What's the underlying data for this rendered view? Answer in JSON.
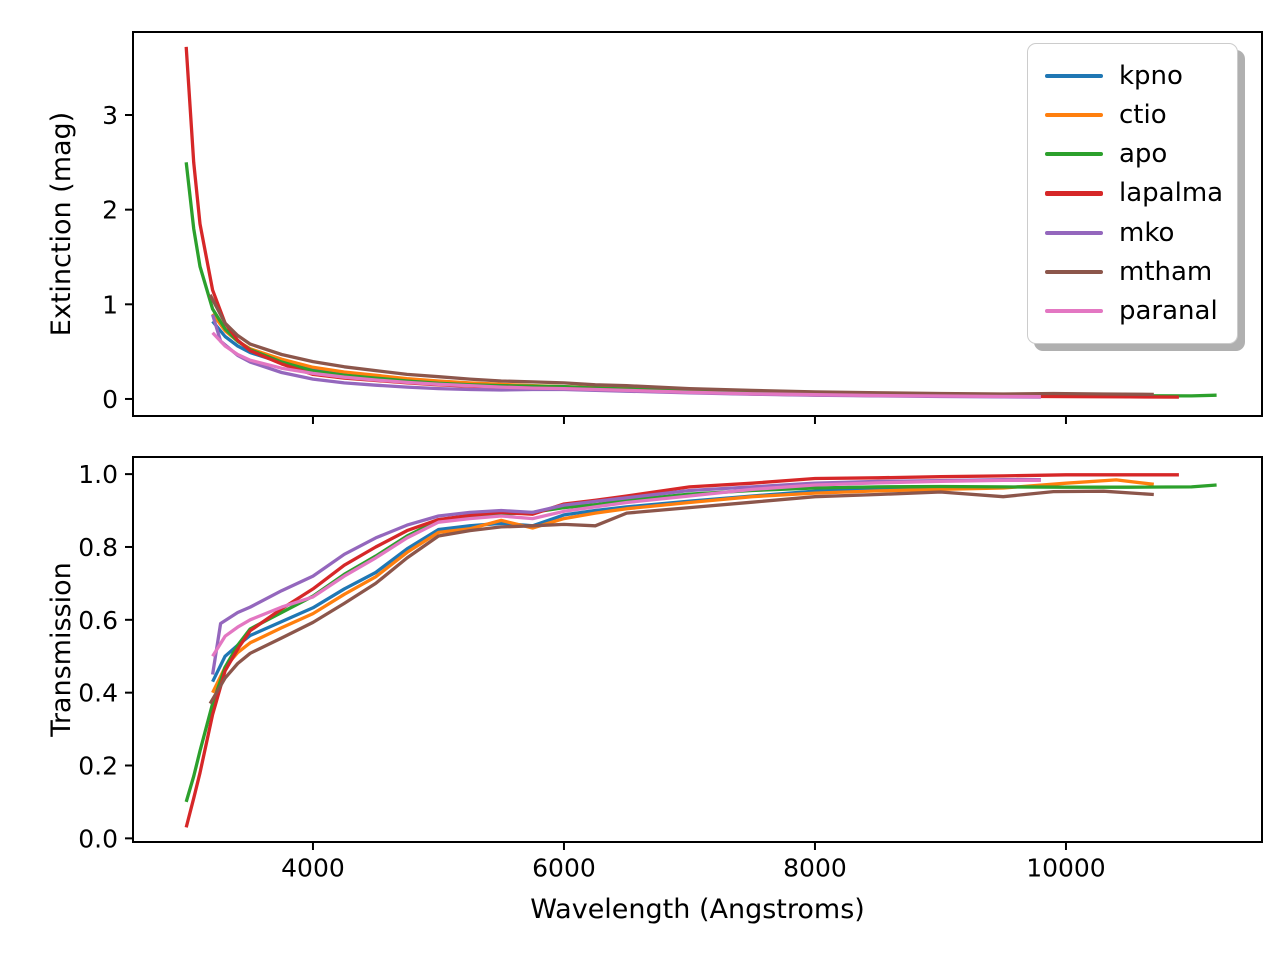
{
  "chart_data": [
    {
      "type": "line",
      "panel": "top",
      "title": "",
      "xlabel": "",
      "ylabel": "Extinction (mag)",
      "xlim": [
        2566,
        11562
      ],
      "ylim": [
        -0.18,
        3.877
      ],
      "grid": false,
      "legend_position": "upper right",
      "xticks": {
        "values": [
          4000,
          6000,
          8000,
          10000
        ],
        "labels": [
          "4000",
          "6000",
          "8000",
          "10000"
        ],
        "show_labels": false
      },
      "yticks": {
        "values": [
          0,
          1,
          2,
          3
        ],
        "labels": [
          "0",
          "1",
          "2",
          "3"
        ]
      },
      "series": [
        {
          "name": "kpno",
          "color": "#1f77b4",
          "x": [
            3200,
            3300,
            3400,
            3500,
            3750,
            4000,
            4250,
            4500,
            4750,
            5000,
            5250,
            5500,
            5750,
            6000,
            6250,
            6500,
            7000,
            7500,
            8000,
            8500,
            9000
          ],
          "y": [
            0.82,
            0.66,
            0.56,
            0.49,
            0.385,
            0.31,
            0.265,
            0.23,
            0.2,
            0.175,
            0.155,
            0.14,
            0.13,
            0.125,
            0.11,
            0.1,
            0.08,
            0.063,
            0.05,
            0.042,
            0.035
          ]
        },
        {
          "name": "ctio",
          "color": "#ff7f0e",
          "x": [
            3200,
            3300,
            3400,
            3500,
            3750,
            4000,
            4250,
            4500,
            4750,
            5000,
            5250,
            5500,
            5750,
            6000,
            6250,
            6500,
            7000,
            7500,
            8000,
            8500,
            9000,
            9500,
            10000,
            10400,
            10700
          ],
          "y": [
            0.9,
            0.72,
            0.61,
            0.53,
            0.42,
            0.335,
            0.285,
            0.25,
            0.215,
            0.19,
            0.17,
            0.155,
            0.14,
            0.13,
            0.12,
            0.11,
            0.088,
            0.068,
            0.055,
            0.046,
            0.04,
            0.035,
            0.03,
            0.028,
            0.028
          ]
        },
        {
          "name": "apo",
          "color": "#2ca02c",
          "x": [
            2990,
            3050,
            3100,
            3200,
            3300,
            3400,
            3500,
            3750,
            4000,
            4250,
            4500,
            4750,
            5000,
            5250,
            5500,
            5750,
            6000,
            6250,
            6500,
            7000,
            7500,
            8000,
            8500,
            9000,
            9500,
            10000,
            10500,
            11000,
            11200
          ],
          "y": [
            2.5,
            1.8,
            1.4,
            0.95,
            0.74,
            0.61,
            0.52,
            0.39,
            0.295,
            0.25,
            0.22,
            0.19,
            0.165,
            0.15,
            0.14,
            0.135,
            0.13,
            0.115,
            0.105,
            0.085,
            0.065,
            0.052,
            0.045,
            0.04,
            0.037,
            0.035,
            0.033,
            0.032,
            0.04
          ]
        },
        {
          "name": "lapalma",
          "color": "#d62728",
          "x": [
            2990,
            3050,
            3100,
            3200,
            3300,
            3400,
            3500,
            3750,
            4000,
            4250,
            4500,
            4750,
            5000,
            5250,
            5500,
            5750,
            6000,
            6250,
            6500,
            7000,
            7500,
            8000,
            8500,
            9000,
            9500,
            10000,
            10500,
            10900
          ],
          "y": [
            3.72,
            2.5,
            1.85,
            1.15,
            0.8,
            0.62,
            0.51,
            0.37,
            0.26,
            0.22,
            0.195,
            0.17,
            0.15,
            0.135,
            0.125,
            0.115,
            0.11,
            0.1,
            0.09,
            0.07,
            0.052,
            0.042,
            0.036,
            0.032,
            0.028,
            0.025,
            0.022,
            0.02
          ]
        },
        {
          "name": "mko",
          "color": "#9467bd",
          "x": [
            3200,
            3264,
            3400,
            3500,
            3750,
            4000,
            4250,
            4500,
            4750,
            5000,
            5250,
            5500,
            5750,
            6000,
            6250,
            6500,
            7000,
            7500,
            8000,
            8500,
            9000,
            9500,
            9800
          ],
          "y": [
            0.89,
            0.61,
            0.46,
            0.39,
            0.28,
            0.21,
            0.17,
            0.145,
            0.125,
            0.11,
            0.1,
            0.095,
            0.1,
            0.1,
            0.09,
            0.082,
            0.065,
            0.05,
            0.04,
            0.032,
            0.026,
            0.022,
            0.02
          ]
        },
        {
          "name": "mtham",
          "color": "#8c564b",
          "x": [
            3180,
            3300,
            3400,
            3500,
            3750,
            4000,
            4250,
            4500,
            4750,
            5000,
            5250,
            5500,
            5750,
            6000,
            6250,
            6500,
            7000,
            7500,
            8000,
            8500,
            9000,
            9500,
            9900,
            10300,
            10700
          ],
          "y": [
            1.1,
            0.8,
            0.67,
            0.58,
            0.47,
            0.395,
            0.34,
            0.3,
            0.26,
            0.235,
            0.21,
            0.19,
            0.18,
            0.17,
            0.15,
            0.14,
            0.11,
            0.09,
            0.075,
            0.065,
            0.058,
            0.052,
            0.058,
            0.052,
            0.048
          ]
        },
        {
          "name": "paranal",
          "color": "#e377c2",
          "x": [
            3200,
            3300,
            3400,
            3500,
            3750,
            4000,
            4250,
            4500,
            4750,
            5000,
            5250,
            5500,
            5750,
            6000,
            6250,
            6500,
            7000,
            7500,
            8000,
            8500,
            9000,
            9500,
            9800
          ],
          "y": [
            0.7,
            0.56,
            0.47,
            0.41,
            0.325,
            0.27,
            0.23,
            0.2,
            0.175,
            0.155,
            0.14,
            0.125,
            0.115,
            0.11,
            0.1,
            0.09,
            0.07,
            0.055,
            0.045,
            0.037,
            0.031,
            0.026,
            0.024
          ]
        }
      ]
    },
    {
      "type": "line",
      "panel": "bottom",
      "title": "",
      "xlabel": "Wavelength (Angstroms)",
      "ylabel": "Transmission",
      "xlim": [
        2566,
        11562
      ],
      "ylim": [
        -0.01,
        1.047
      ],
      "grid": false,
      "xticks": {
        "values": [
          4000,
          6000,
          8000,
          10000
        ],
        "labels": [
          "4000",
          "6000",
          "8000",
          "10000"
        ],
        "show_labels": true
      },
      "yticks": {
        "values": [
          0,
          0.2,
          0.4,
          0.6,
          0.8,
          1.0
        ],
        "labels": [
          "0.0",
          "0.2",
          "0.4",
          "0.6",
          "0.8",
          "1.0"
        ]
      },
      "series": [
        {
          "name": "kpno",
          "color": "#1f77b4",
          "x": [
            3200,
            3300,
            3400,
            3500,
            3750,
            4000,
            4250,
            4500,
            4750,
            5000,
            5250,
            5500,
            5750,
            6000,
            6250,
            6500,
            7000,
            7500,
            8000,
            8500,
            9000
          ],
          "y": [
            0.43,
            0.5,
            0.53,
            0.557,
            0.595,
            0.633,
            0.685,
            0.73,
            0.795,
            0.848,
            0.858,
            0.865,
            0.858,
            0.888,
            0.9,
            0.91,
            0.926,
            0.94,
            0.953,
            0.96,
            0.964
          ]
        },
        {
          "name": "ctio",
          "color": "#ff7f0e",
          "x": [
            3200,
            3300,
            3400,
            3500,
            3750,
            4000,
            4250,
            4500,
            4750,
            5000,
            5250,
            5500,
            5750,
            6000,
            6250,
            6500,
            7000,
            7500,
            8000,
            8500,
            9000,
            9500,
            10000,
            10400,
            10700
          ],
          "y": [
            0.4,
            0.47,
            0.51,
            0.537,
            0.578,
            0.617,
            0.67,
            0.718,
            0.785,
            0.84,
            0.85,
            0.873,
            0.852,
            0.878,
            0.893,
            0.905,
            0.922,
            0.938,
            0.948,
            0.954,
            0.958,
            0.962,
            0.975,
            0.984,
            0.972
          ]
        },
        {
          "name": "apo",
          "color": "#2ca02c",
          "x": [
            2990,
            3050,
            3100,
            3200,
            3300,
            3400,
            3500,
            3750,
            4000,
            4250,
            4500,
            4750,
            5000,
            5250,
            5500,
            5750,
            6000,
            6250,
            6500,
            7000,
            7500,
            8000,
            8500,
            9000,
            9500,
            10000,
            10500,
            11000,
            11200
          ],
          "y": [
            0.1,
            0.17,
            0.24,
            0.37,
            0.47,
            0.53,
            0.575,
            0.62,
            0.665,
            0.725,
            0.775,
            0.83,
            0.873,
            0.882,
            0.89,
            0.895,
            0.908,
            0.916,
            0.928,
            0.945,
            0.955,
            0.962,
            0.965,
            0.966,
            0.965,
            0.964,
            0.964,
            0.965,
            0.97
          ]
        },
        {
          "name": "lapalma",
          "color": "#d62728",
          "x": [
            2990,
            3050,
            3100,
            3200,
            3300,
            3400,
            3500,
            3750,
            4000,
            4250,
            4500,
            4750,
            5000,
            5250,
            5500,
            5750,
            6000,
            6250,
            6500,
            7000,
            7500,
            8000,
            8500,
            9000,
            9500,
            10000,
            10500,
            10900
          ],
          "y": [
            0.03,
            0.11,
            0.18,
            0.34,
            0.46,
            0.52,
            0.57,
            0.63,
            0.685,
            0.75,
            0.8,
            0.845,
            0.875,
            0.887,
            0.895,
            0.89,
            0.918,
            0.928,
            0.94,
            0.965,
            0.975,
            0.988,
            0.99,
            0.993,
            0.995,
            0.998,
            0.998,
            0.998
          ]
        },
        {
          "name": "mko",
          "color": "#9467bd",
          "x": [
            3200,
            3264,
            3400,
            3500,
            3750,
            4000,
            4250,
            4500,
            4750,
            5000,
            5250,
            5500,
            5750,
            6000,
            6250,
            6500,
            7000,
            7500,
            8000,
            8500,
            9000,
            9500,
            9800
          ],
          "y": [
            0.45,
            0.59,
            0.62,
            0.635,
            0.68,
            0.72,
            0.78,
            0.825,
            0.86,
            0.885,
            0.895,
            0.9,
            0.895,
            0.915,
            0.925,
            0.935,
            0.955,
            0.965,
            0.975,
            0.98,
            0.982,
            0.985,
            0.985
          ]
        },
        {
          "name": "mtham",
          "color": "#8c564b",
          "x": [
            3180,
            3300,
            3400,
            3500,
            3750,
            4000,
            4250,
            4500,
            4750,
            5000,
            5250,
            5500,
            5750,
            6000,
            6250,
            6500,
            7000,
            7500,
            8000,
            8500,
            9000,
            9500,
            9900,
            10300,
            10700
          ],
          "y": [
            0.37,
            0.44,
            0.48,
            0.508,
            0.55,
            0.593,
            0.645,
            0.7,
            0.77,
            0.83,
            0.845,
            0.855,
            0.858,
            0.862,
            0.858,
            0.893,
            0.908,
            0.923,
            0.938,
            0.944,
            0.951,
            0.938,
            0.952,
            0.953,
            0.944
          ]
        },
        {
          "name": "paranal",
          "color": "#e377c2",
          "x": [
            3200,
            3300,
            3400,
            3500,
            3750,
            4000,
            4250,
            4500,
            4750,
            5000,
            5250,
            5500,
            5750,
            6000,
            6250,
            6500,
            7000,
            7500,
            8000,
            8500,
            9000,
            9500,
            9800
          ],
          "y": [
            0.5,
            0.555,
            0.58,
            0.6,
            0.635,
            0.663,
            0.72,
            0.77,
            0.825,
            0.868,
            0.878,
            0.885,
            0.878,
            0.898,
            0.91,
            0.922,
            0.94,
            0.958,
            0.97,
            0.976,
            0.98,
            0.983,
            0.983
          ]
        }
      ]
    }
  ],
  "legend": {
    "border_color": "#cccccc",
    "shadow": true,
    "entries": [
      {
        "label": "kpno",
        "color": "#1f77b4"
      },
      {
        "label": "ctio",
        "color": "#ff7f0e"
      },
      {
        "label": "apo",
        "color": "#2ca02c"
      },
      {
        "label": "lapalma",
        "color": "#d62728"
      },
      {
        "label": "mko",
        "color": "#9467bd"
      },
      {
        "label": "mtham",
        "color": "#8c564b"
      },
      {
        "label": "paranal",
        "color": "#e377c2"
      }
    ]
  }
}
